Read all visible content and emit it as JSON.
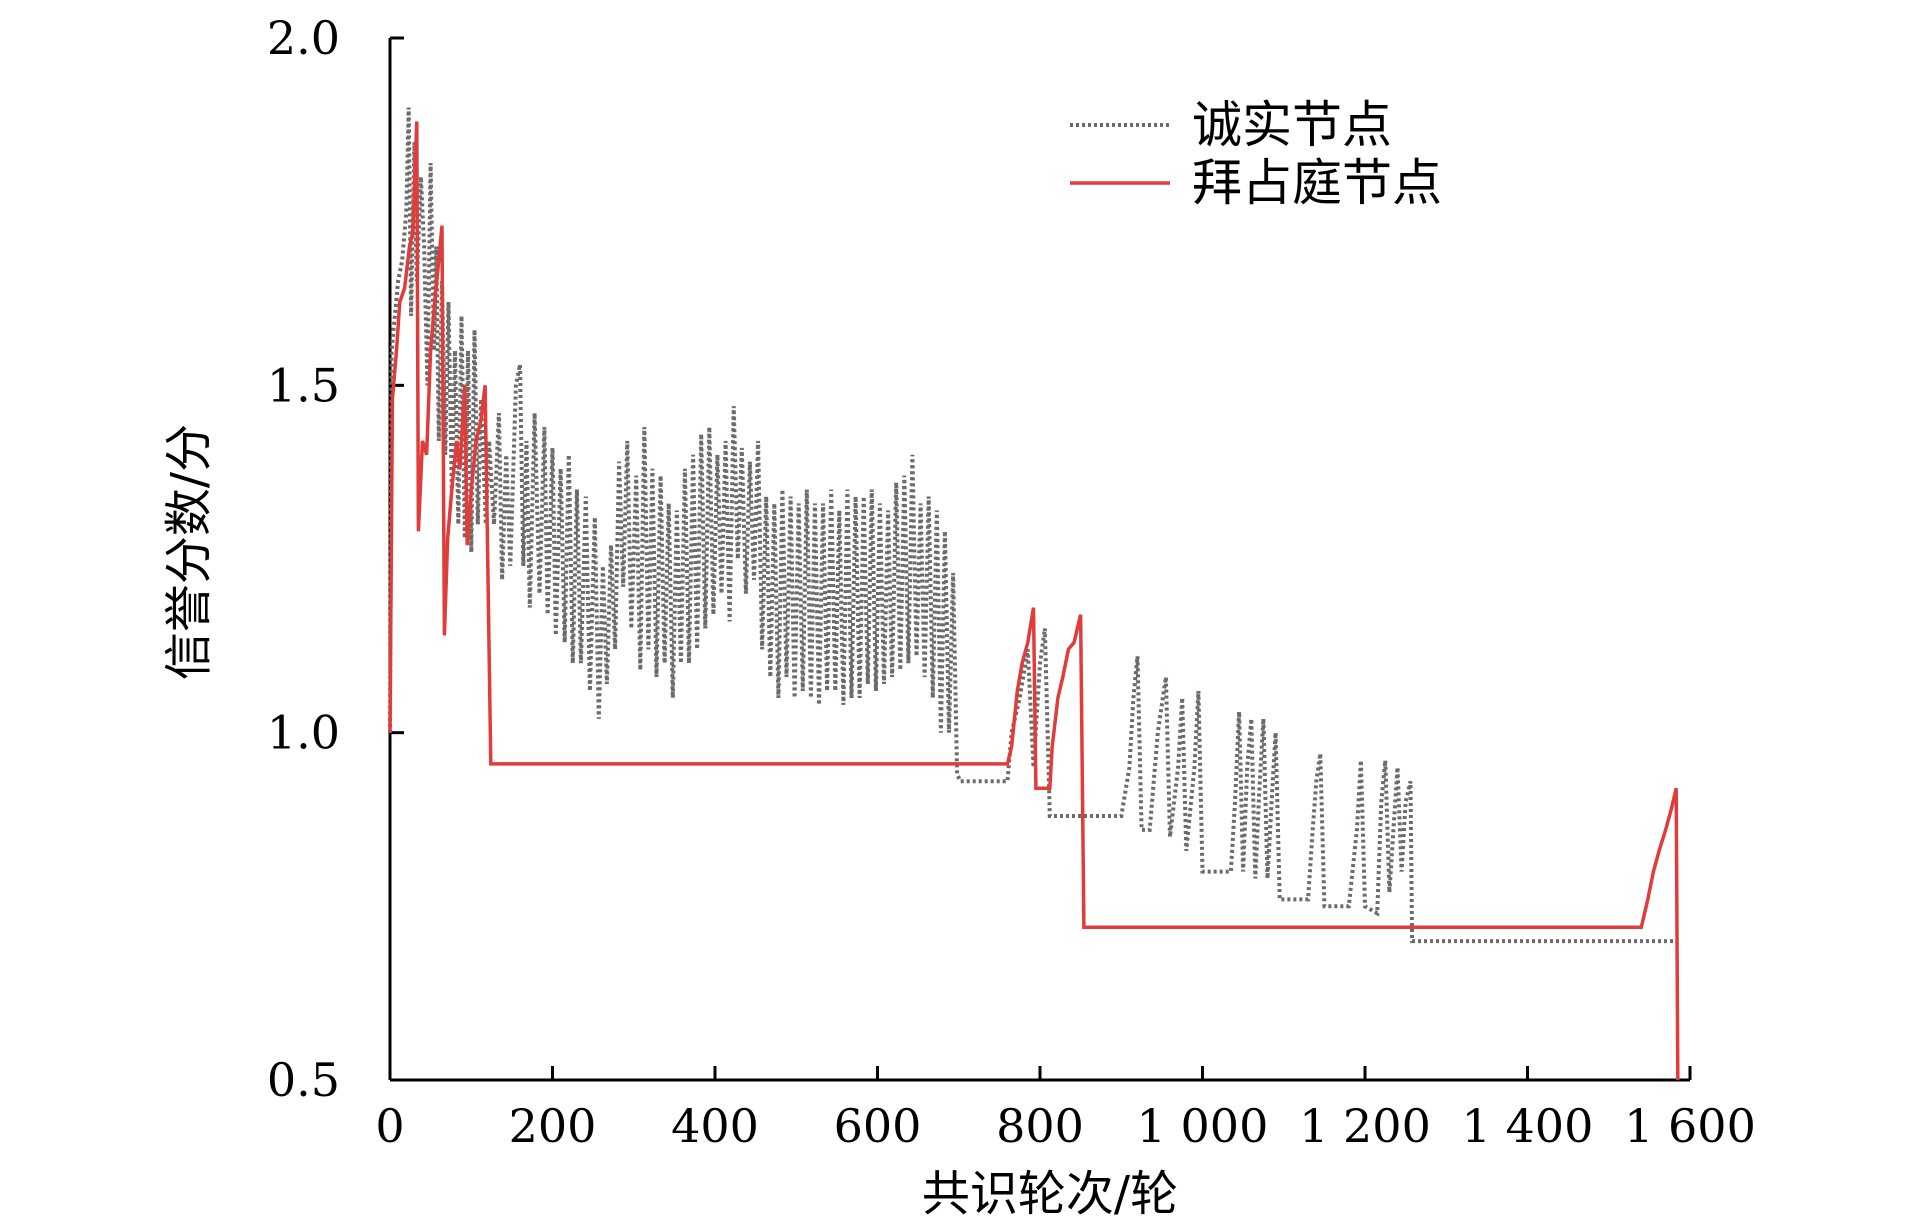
{
  "chart_data": {
    "type": "line",
    "xlabel": "共识轮次/轮",
    "ylabel": "信誉分数/分",
    "xlim": [
      0,
      1600
    ],
    "ylim": [
      0.5,
      2.0
    ],
    "x_ticks": [
      0,
      200,
      400,
      600,
      800,
      1000,
      1200,
      1400,
      1600
    ],
    "x_tick_labels": [
      "0",
      "200",
      "400",
      "600",
      "800",
      "1 000",
      "1 200",
      "1 400",
      "1 600"
    ],
    "y_ticks": [
      0.5,
      1.0,
      1.5,
      2.0
    ],
    "y_tick_labels": [
      "0.5",
      "1.0",
      "1.5",
      "2.0"
    ],
    "grid": false,
    "legend_position": "top-right",
    "series": [
      {
        "name": "诚实节点",
        "color": "#6f6a6a",
        "style": "dotted",
        "points": [
          [
            0,
            1.0
          ],
          [
            2,
            1.55
          ],
          [
            10,
            1.65
          ],
          [
            15,
            1.68
          ],
          [
            20,
            1.75
          ],
          [
            23,
            1.9
          ],
          [
            26,
            1.6
          ],
          [
            30,
            1.85
          ],
          [
            33,
            1.65
          ],
          [
            38,
            1.8
          ],
          [
            42,
            1.7
          ],
          [
            46,
            1.5
          ],
          [
            50,
            1.82
          ],
          [
            54,
            1.55
          ],
          [
            57,
            1.7
          ],
          [
            60,
            1.42
          ],
          [
            64,
            1.65
          ],
          [
            68,
            1.4
          ],
          [
            72,
            1.62
          ],
          [
            76,
            1.35
          ],
          [
            80,
            1.55
          ],
          [
            84,
            1.3
          ],
          [
            88,
            1.6
          ],
          [
            92,
            1.28
          ],
          [
            96,
            1.55
          ],
          [
            100,
            1.26
          ],
          [
            104,
            1.58
          ],
          [
            108,
            1.3
          ],
          [
            112,
            1.48
          ],
          [
            118,
            1.3
          ],
          [
            122,
            1.42
          ],
          [
            128,
            1.3
          ],
          [
            134,
            1.46
          ],
          [
            138,
            1.22
          ],
          [
            143,
            1.4
          ],
          [
            148,
            1.24
          ],
          [
            155,
            1.5
          ],
          [
            160,
            1.53
          ],
          [
            164,
            1.24
          ],
          [
            168,
            1.42
          ],
          [
            172,
            1.18
          ],
          [
            178,
            1.46
          ],
          [
            184,
            1.2
          ],
          [
            190,
            1.44
          ],
          [
            194,
            1.17
          ],
          [
            200,
            1.41
          ],
          [
            204,
            1.14
          ],
          [
            210,
            1.38
          ],
          [
            215,
            1.13
          ],
          [
            220,
            1.4
          ],
          [
            225,
            1.1
          ],
          [
            230,
            1.35
          ],
          [
            235,
            1.1
          ],
          [
            241,
            1.34
          ],
          [
            246,
            1.06
          ],
          [
            252,
            1.31
          ],
          [
            257,
            1.02
          ],
          [
            262,
            1.24
          ],
          [
            267,
            1.07
          ],
          [
            272,
            1.27
          ],
          [
            277,
            1.12
          ],
          [
            282,
            1.39
          ],
          [
            287,
            1.21
          ],
          [
            292,
            1.42
          ],
          [
            297,
            1.15
          ],
          [
            303,
            1.37
          ],
          [
            308,
            1.09
          ],
          [
            313,
            1.44
          ],
          [
            318,
            1.12
          ],
          [
            323,
            1.38
          ],
          [
            328,
            1.08
          ],
          [
            333,
            1.37
          ],
          [
            338,
            1.1
          ],
          [
            343,
            1.33
          ],
          [
            348,
            1.05
          ],
          [
            353,
            1.32
          ],
          [
            358,
            1.1
          ],
          [
            363,
            1.38
          ],
          [
            368,
            1.1
          ],
          [
            373,
            1.4
          ],
          [
            378,
            1.12
          ],
          [
            383,
            1.43
          ],
          [
            388,
            1.15
          ],
          [
            393,
            1.44
          ],
          [
            398,
            1.17
          ],
          [
            403,
            1.4
          ],
          [
            408,
            1.2
          ],
          [
            413,
            1.42
          ],
          [
            418,
            1.16
          ],
          [
            423,
            1.47
          ],
          [
            428,
            1.25
          ],
          [
            433,
            1.41
          ],
          [
            438,
            1.2
          ],
          [
            443,
            1.39
          ],
          [
            448,
            1.22
          ],
          [
            453,
            1.42
          ],
          [
            458,
            1.12
          ],
          [
            463,
            1.34
          ],
          [
            468,
            1.08
          ],
          [
            473,
            1.33
          ],
          [
            478,
            1.05
          ],
          [
            483,
            1.35
          ],
          [
            488,
            1.08
          ],
          [
            493,
            1.34
          ],
          [
            498,
            1.05
          ],
          [
            503,
            1.33
          ],
          [
            508,
            1.06
          ],
          [
            513,
            1.35
          ],
          [
            518,
            1.05
          ],
          [
            523,
            1.33
          ],
          [
            528,
            1.04
          ],
          [
            533,
            1.33
          ],
          [
            538,
            1.06
          ],
          [
            543,
            1.35
          ],
          [
            548,
            1.06
          ],
          [
            553,
            1.32
          ],
          [
            558,
            1.04
          ],
          [
            563,
            1.35
          ],
          [
            568,
            1.05
          ],
          [
            573,
            1.34
          ],
          [
            578,
            1.05
          ],
          [
            583,
            1.34
          ],
          [
            588,
            1.07
          ],
          [
            593,
            1.35
          ],
          [
            598,
            1.06
          ],
          [
            603,
            1.33
          ],
          [
            608,
            1.07
          ],
          [
            613,
            1.32
          ],
          [
            618,
            1.08
          ],
          [
            623,
            1.36
          ],
          [
            628,
            1.09
          ],
          [
            633,
            1.37
          ],
          [
            638,
            1.1
          ],
          [
            643,
            1.4
          ],
          [
            648,
            1.11
          ],
          [
            653,
            1.33
          ],
          [
            658,
            1.08
          ],
          [
            663,
            1.34
          ],
          [
            668,
            1.05
          ],
          [
            673,
            1.32
          ],
          [
            678,
            1.0
          ],
          [
            683,
            1.29
          ],
          [
            688,
            1.0
          ],
          [
            693,
            1.23
          ],
          [
            698,
            0.94
          ],
          [
            702,
            0.93
          ],
          [
            760,
            0.93
          ],
          [
            765,
            1.0
          ],
          [
            775,
            1.05
          ],
          [
            785,
            1.12
          ],
          [
            792,
            0.95
          ],
          [
            800,
            1.1
          ],
          [
            806,
            1.15
          ],
          [
            812,
            0.88
          ],
          [
            900,
            0.88
          ],
          [
            910,
            0.95
          ],
          [
            915,
            1.05
          ],
          [
            920,
            1.11
          ],
          [
            925,
            0.86
          ],
          [
            935,
            0.86
          ],
          [
            945,
            1.0
          ],
          [
            955,
            1.08
          ],
          [
            960,
            0.85
          ],
          [
            970,
            0.95
          ],
          [
            975,
            1.05
          ],
          [
            980,
            0.83
          ],
          [
            990,
            0.95
          ],
          [
            995,
            1.06
          ],
          [
            1000,
            0.8
          ],
          [
            1035,
            0.8
          ],
          [
            1040,
            0.9
          ],
          [
            1045,
            1.03
          ],
          [
            1050,
            0.8
          ],
          [
            1055,
            0.95
          ],
          [
            1060,
            1.02
          ],
          [
            1065,
            0.79
          ],
          [
            1070,
            0.92
          ],
          [
            1075,
            1.02
          ],
          [
            1080,
            0.79
          ],
          [
            1085,
            0.9
          ],
          [
            1090,
            1.0
          ],
          [
            1095,
            0.76
          ],
          [
            1130,
            0.76
          ],
          [
            1135,
            0.85
          ],
          [
            1140,
            0.93
          ],
          [
            1145,
            0.97
          ],
          [
            1150,
            0.75
          ],
          [
            1180,
            0.75
          ],
          [
            1190,
            0.86
          ],
          [
            1195,
            0.96
          ],
          [
            1200,
            0.75
          ],
          [
            1215,
            0.74
          ],
          [
            1220,
            0.9
          ],
          [
            1225,
            0.96
          ],
          [
            1230,
            0.77
          ],
          [
            1235,
            0.86
          ],
          [
            1240,
            0.95
          ],
          [
            1245,
            0.8
          ],
          [
            1250,
            0.9
          ],
          [
            1256,
            0.93
          ],
          [
            1258,
            0.7
          ],
          [
            1380,
            0.7
          ],
          [
            1582,
            0.7
          ]
        ]
      },
      {
        "name": "拜占庭节点",
        "color": "#e03c3c",
        "style": "solid",
        "points": [
          [
            0,
            1.0
          ],
          [
            3,
            1.48
          ],
          [
            8,
            1.55
          ],
          [
            12,
            1.62
          ],
          [
            18,
            1.64
          ],
          [
            24,
            1.7
          ],
          [
            28,
            1.72
          ],
          [
            33,
            1.88
          ],
          [
            35,
            1.29
          ],
          [
            40,
            1.42
          ],
          [
            45,
            1.4
          ],
          [
            50,
            1.55
          ],
          [
            55,
            1.62
          ],
          [
            60,
            1.68
          ],
          [
            64,
            1.73
          ],
          [
            67,
            1.14
          ],
          [
            71,
            1.28
          ],
          [
            76,
            1.35
          ],
          [
            82,
            1.42
          ],
          [
            86,
            1.38
          ],
          [
            92,
            1.5
          ],
          [
            95,
            1.27
          ],
          [
            100,
            1.35
          ],
          [
            106,
            1.42
          ],
          [
            112,
            1.45
          ],
          [
            117,
            1.5
          ],
          [
            124,
            0.955
          ],
          [
            130,
            0.955
          ],
          [
            760,
            0.955
          ],
          [
            765,
            0.98
          ],
          [
            772,
            1.06
          ],
          [
            778,
            1.1
          ],
          [
            785,
            1.13
          ],
          [
            792,
            1.18
          ],
          [
            795,
            0.92
          ],
          [
            812,
            0.92
          ],
          [
            815,
            0.98
          ],
          [
            822,
            1.05
          ],
          [
            828,
            1.08
          ],
          [
            835,
            1.12
          ],
          [
            842,
            1.13
          ],
          [
            850,
            1.17
          ],
          [
            854,
            0.72
          ],
          [
            1540,
            0.72
          ],
          [
            1548,
            0.76
          ],
          [
            1555,
            0.8
          ],
          [
            1562,
            0.83
          ],
          [
            1570,
            0.86
          ],
          [
            1577,
            0.89
          ],
          [
            1583,
            0.92
          ],
          [
            1585,
            0.5
          ]
        ]
      }
    ]
  }
}
